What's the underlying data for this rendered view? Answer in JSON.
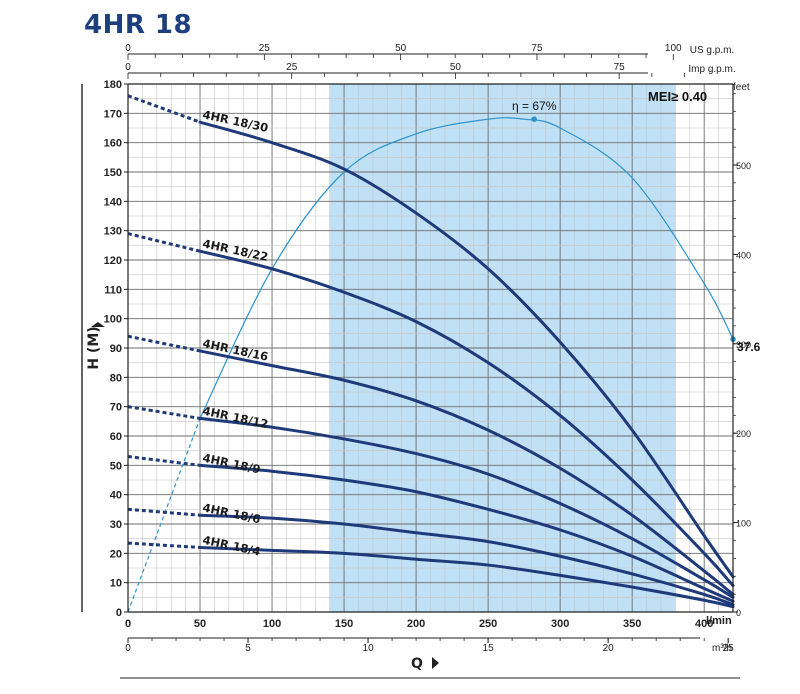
{
  "page": {
    "title": "4HR 18"
  },
  "colors": {
    "title": "#1d3f7e",
    "curve": "#1f3a7a",
    "efficiency": "#2a93cf",
    "operating_band": "#bfe0f5",
    "grid_major": "#6d6d6d",
    "grid_minor": "#c6c6c6"
  },
  "chart_data": {
    "type": "line",
    "title": "4HR 18",
    "y_axis_label": "H  (M)",
    "x_axis_label": "Q",
    "units": {
      "main_x": "l/min",
      "m3h": "m³/h",
      "usgpm": "US g.p.m.",
      "impgpm": "Imp g.p.m.",
      "feet": "feet"
    },
    "axes": {
      "main_x": {
        "min": 0,
        "max": 420,
        "ticks": [
          0,
          50,
          100,
          150,
          200,
          250,
          300,
          350,
          400
        ]
      },
      "m3h": {
        "ticks": [
          0,
          5,
          10,
          15,
          20,
          25
        ]
      },
      "usgpm": {
        "ticks": [
          0,
          25,
          50,
          75,
          100
        ]
      },
      "impgpm": {
        "ticks": [
          0,
          25,
          50,
          75
        ]
      },
      "main_y": {
        "min": 0,
        "max": 180,
        "ticks": [
          0,
          10,
          20,
          30,
          40,
          50,
          60,
          70,
          80,
          90,
          100,
          110,
          120,
          130,
          140,
          150,
          160,
          170,
          180
        ]
      },
      "feet": {
        "ticks": [
          0,
          100,
          200,
          300,
          400,
          500
        ]
      }
    },
    "grid": true,
    "recommended_range": {
      "from": 140,
      "to": 380
    },
    "mei_label": "MEI≥ 0.40",
    "series": [
      {
        "name": "4HR 18/30",
        "x": [
          0,
          50,
          100,
          150,
          200,
          250,
          300,
          350,
          400,
          420
        ],
        "y": [
          176,
          167,
          160,
          151,
          136,
          117,
          92,
          62,
          26,
          12
        ],
        "dashed_until": 50
      },
      {
        "name": "4HR 18/22",
        "x": [
          0,
          50,
          100,
          150,
          200,
          250,
          300,
          350,
          400,
          420
        ],
        "y": [
          129,
          123,
          117,
          109,
          99,
          85,
          67,
          45,
          20,
          9
        ],
        "dashed_until": 50
      },
      {
        "name": "4HR 18/16",
        "x": [
          0,
          50,
          100,
          150,
          200,
          250,
          300,
          350,
          400,
          420
        ],
        "y": [
          94,
          89,
          84,
          79,
          72,
          62,
          49,
          33,
          14,
          6
        ],
        "dashed_until": 50
      },
      {
        "name": "4HR 18/12",
        "x": [
          0,
          50,
          100,
          150,
          200,
          250,
          300,
          350,
          400,
          420
        ],
        "y": [
          70,
          66,
          63,
          59,
          54,
          47,
          37,
          25,
          11,
          5
        ],
        "dashed_until": 50
      },
      {
        "name": "4HR 18/9",
        "x": [
          0,
          50,
          100,
          150,
          200,
          250,
          300,
          350,
          400,
          420
        ],
        "y": [
          53,
          50,
          48,
          45,
          41,
          35,
          28,
          19,
          8,
          3.7
        ],
        "dashed_until": 50
      },
      {
        "name": "4HR 18/6",
        "x": [
          0,
          50,
          100,
          150,
          200,
          250,
          300,
          350,
          400,
          420
        ],
        "y": [
          35,
          33,
          32,
          30,
          27,
          24,
          19,
          13,
          6,
          2.5
        ],
        "dashed_until": 50
      },
      {
        "name": "4HR 18/4",
        "x": [
          0,
          50,
          100,
          150,
          200,
          250,
          300,
          350,
          400,
          420
        ],
        "y": [
          23.5,
          22,
          21,
          20,
          18,
          16,
          12.5,
          8.5,
          4,
          1.8
        ],
        "dashed_until": 50
      }
    ],
    "efficiency": {
      "x": [
        0,
        50,
        100,
        150,
        200,
        250,
        275,
        300,
        350,
        400,
        420
      ],
      "y": [
        0,
        66,
        117,
        150,
        163,
        168,
        168,
        165,
        148,
        112,
        93
      ],
      "dashed_until": 50,
      "peak": {
        "x": 282,
        "y": 168,
        "label": "η = 67%"
      },
      "end": {
        "x": 420,
        "y": 93,
        "label": "37.6"
      }
    }
  }
}
